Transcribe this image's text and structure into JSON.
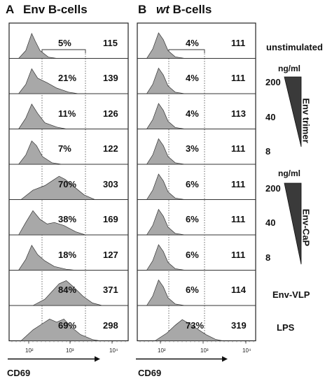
{
  "panels": [
    {
      "letter": "A",
      "title": "Env B-cells",
      "rows": [
        {
          "pct": "5%",
          "mfi": "115"
        },
        {
          "pct": "21%",
          "mfi": "139"
        },
        {
          "pct": "11%",
          "mfi": "126"
        },
        {
          "pct": "7%",
          "mfi": "122"
        },
        {
          "pct": "70%",
          "mfi": "303"
        },
        {
          "pct": "38%",
          "mfi": "169"
        },
        {
          "pct": "18%",
          "mfi": "127"
        },
        {
          "pct": "84%",
          "mfi": "371"
        },
        {
          "pct": "69%",
          "mfi": "298"
        }
      ],
      "x_ticks": [
        "10²",
        "10³",
        "10⁴"
      ],
      "x_label": "CD69"
    },
    {
      "letter": "B",
      "title_italic": "wt",
      "title": " B-cells",
      "rows": [
        {
          "pct": "4%",
          "mfi": "111"
        },
        {
          "pct": "4%",
          "mfi": "111"
        },
        {
          "pct": "4%",
          "mfi": "113"
        },
        {
          "pct": "3%",
          "mfi": "111"
        },
        {
          "pct": "6%",
          "mfi": "111"
        },
        {
          "pct": "6%",
          "mfi": "111"
        },
        {
          "pct": "6%",
          "mfi": "111"
        },
        {
          "pct": "6%",
          "mfi": "114"
        },
        {
          "pct": "73%",
          "mfi": "319"
        }
      ],
      "x_ticks": [
        "10²",
        "10³",
        "10⁴"
      ],
      "x_label": "CD69"
    }
  ],
  "side": {
    "unstimulated": "unstimulated",
    "trimer_unit": "ng/ml",
    "trimer_label": "Env trimer",
    "trimer_doses": [
      "200",
      "40",
      "8"
    ],
    "cap_unit": "ng/ml",
    "cap_label": "Env-CaP",
    "cap_doses": [
      "200",
      "40",
      "8"
    ],
    "vlp": "Env-VLP",
    "lps": "LPS"
  },
  "colors": {
    "histogram_fill": "#a8a8a8",
    "histogram_stroke": "#333333",
    "triangle": "#3a3a3a"
  }
}
